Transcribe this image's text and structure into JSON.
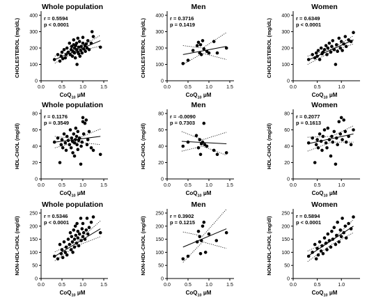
{
  "chart_data": [
    {
      "type": "scatter",
      "title": "Whole population",
      "ylabel": "CHOLESTEROL (mg/dL)",
      "xlabel_main": "CoQ",
      "xlabel_sub": "10",
      "xlabel_unit": " μM",
      "xlim": [
        0,
        1.5
      ],
      "ylim": [
        0,
        400
      ],
      "xticks": [
        "0.0",
        "0.5",
        "1.0",
        "1.5"
      ],
      "yticks": [
        "0",
        "100",
        "200",
        "300",
        "400"
      ],
      "r": "r = 0.5594",
      "p": "p < 0.0001",
      "fit": {
        "x": [
          0.33,
          1.42
        ],
        "y": [
          130,
          245
        ]
      },
      "ci_upper": {
        "x": [
          0.33,
          0.85,
          1.42
        ],
        "y": [
          150,
          193,
          278
        ]
      },
      "ci_lower": {
        "x": [
          0.33,
          0.85,
          1.42
        ],
        "y": [
          108,
          178,
          212
        ]
      },
      "points": {
        "x": [
          0.32,
          0.4,
          0.45,
          0.48,
          0.5,
          0.52,
          0.55,
          0.58,
          0.6,
          0.62,
          0.65,
          0.68,
          0.7,
          0.72,
          0.73,
          0.75,
          0.76,
          0.78,
          0.78,
          0.8,
          0.8,
          0.82,
          0.83,
          0.85,
          0.85,
          0.86,
          0.88,
          0.88,
          0.9,
          0.9,
          0.92,
          0.93,
          0.95,
          0.96,
          0.98,
          1.0,
          1.0,
          1.02,
          1.05,
          1.06,
          1.08,
          1.1,
          1.12,
          1.15,
          1.2,
          1.22,
          1.25,
          1.42
        ],
        "y": [
          130,
          160,
          120,
          150,
          175,
          135,
          190,
          140,
          160,
          200,
          175,
          230,
          160,
          190,
          210,
          150,
          180,
          220,
          250,
          170,
          200,
          140,
          215,
          190,
          230,
          100,
          175,
          260,
          165,
          205,
          240,
          150,
          185,
          210,
          170,
          230,
          265,
          195,
          215,
          180,
          225,
          200,
          245,
          190,
          230,
          300,
          270,
          205
        ]
      }
    },
    {
      "type": "scatter",
      "title": "Men",
      "ylabel": "CHOLESTEROL (mg/dL)",
      "xlabel_main": "CoQ",
      "xlabel_sub": "10",
      "xlabel_unit": " μM",
      "xlim": [
        0,
        1.5
      ],
      "ylim": [
        0,
        400
      ],
      "xticks": [
        "0.0",
        "0.5",
        "1.0",
        "1.5"
      ],
      "yticks": [
        "0",
        "100",
        "200",
        "300",
        "400"
      ],
      "r": "r = 0.3716",
      "p": "p = 0.1419",
      "fit": {
        "x": [
          0.38,
          1.42
        ],
        "y": [
          160,
          210
        ]
      },
      "ci_upper": {
        "x": [
          0.38,
          0.85,
          1.42
        ],
        "y": [
          215,
          200,
          295
        ]
      },
      "ci_lower": {
        "x": [
          0.38,
          0.85,
          1.42
        ],
        "y": [
          100,
          168,
          130
        ]
      },
      "points": {
        "x": [
          0.38,
          0.5,
          0.62,
          0.72,
          0.75,
          0.78,
          0.8,
          0.82,
          0.85,
          0.88,
          0.95,
          1.0,
          1.12,
          1.2,
          1.42
        ],
        "y": [
          105,
          125,
          185,
          215,
          235,
          170,
          220,
          160,
          245,
          195,
          180,
          170,
          240,
          170,
          200
        ]
      }
    },
    {
      "type": "scatter",
      "title": "Women",
      "ylabel": "CHOLESTEROL (mg/dL)",
      "xlabel_main": "CoQ",
      "xlabel_sub": "10",
      "xlabel_unit": " μM",
      "xlim": [
        0,
        1.3
      ],
      "ylim": [
        0,
        400
      ],
      "xticks": [
        "0.0",
        "0.5",
        "1.0"
      ],
      "yticks": [
        "0",
        "100",
        "200",
        "300",
        "400"
      ],
      "r": "r = 0.6349",
      "p": "p < 0.0001",
      "fit": {
        "x": [
          0.3,
          1.25
        ],
        "y": [
          125,
          250
        ]
      },
      "ci_upper": {
        "x": [
          0.3,
          0.8,
          1.25
        ],
        "y": [
          150,
          195,
          275
        ]
      },
      "ci_lower": {
        "x": [
          0.3,
          0.8,
          1.25
        ],
        "y": [
          100,
          178,
          225
        ]
      },
      "points": {
        "x": [
          0.32,
          0.4,
          0.45,
          0.48,
          0.5,
          0.52,
          0.55,
          0.58,
          0.6,
          0.62,
          0.65,
          0.68,
          0.7,
          0.72,
          0.75,
          0.78,
          0.8,
          0.82,
          0.85,
          0.88,
          0.9,
          0.92,
          0.95,
          0.98,
          1.0,
          1.02,
          1.05,
          1.08,
          1.1,
          1.15,
          1.2,
          1.25
        ],
        "y": [
          130,
          160,
          140,
          170,
          150,
          185,
          130,
          200,
          165,
          175,
          190,
          215,
          160,
          200,
          230,
          175,
          210,
          245,
          190,
          100,
          220,
          180,
          260,
          200,
          240,
          185,
          225,
          270,
          210,
          250,
          240,
          295
        ]
      }
    },
    {
      "type": "scatter",
      "title": "Whole population",
      "ylabel": "HDL-CHOL (mg/dl)",
      "xlabel_main": "CoQ",
      "xlabel_sub": "10",
      "xlabel_unit": " μM",
      "xlim": [
        0,
        1.5
      ],
      "ylim": [
        0,
        80
      ],
      "xticks": [
        "0.0",
        "0.5",
        "1.0",
        "1.5"
      ],
      "yticks": [
        "0",
        "20",
        "40",
        "60",
        "80"
      ],
      "r": "r = 0.1176",
      "p": "p = 0.3549",
      "fit": {
        "x": [
          0.33,
          1.42
        ],
        "y": [
          45,
          52
        ]
      },
      "ci_upper": {
        "x": [
          0.33,
          0.85,
          1.42
        ],
        "y": [
          52,
          49,
          61
        ]
      },
      "ci_lower": {
        "x": [
          0.33,
          0.85,
          1.42
        ],
        "y": [
          38,
          45,
          42
        ]
      },
      "points": {
        "x": [
          0.32,
          0.4,
          0.45,
          0.48,
          0.5,
          0.52,
          0.55,
          0.58,
          0.6,
          0.62,
          0.65,
          0.68,
          0.7,
          0.72,
          0.73,
          0.75,
          0.76,
          0.78,
          0.8,
          0.8,
          0.82,
          0.83,
          0.85,
          0.86,
          0.88,
          0.88,
          0.9,
          0.92,
          0.95,
          0.96,
          0.98,
          1.0,
          1.0,
          1.02,
          1.05,
          1.08,
          1.1,
          1.12,
          1.15,
          1.2,
          1.25,
          1.42
        ],
        "y": [
          45,
          50,
          20,
          42,
          48,
          38,
          55,
          44,
          35,
          52,
          47,
          42,
          60,
          38,
          50,
          46,
          32,
          55,
          44,
          28,
          48,
          62,
          52,
          42,
          58,
          36,
          47,
          50,
          18,
          40,
          45,
          70,
          75,
          55,
          68,
          72,
          42,
          48,
          58,
          38,
          35,
          30
        ]
      }
    },
    {
      "type": "scatter",
      "title": "Men",
      "ylabel": "HDL-CHOL (mg/dl)",
      "xlabel_main": "CoQ",
      "xlabel_sub": "10",
      "xlabel_unit": " μM",
      "xlim": [
        0,
        1.5
      ],
      "ylim": [
        0,
        80
      ],
      "xticks": [
        "0.0",
        "0.5",
        "1.0",
        "1.5"
      ],
      "yticks": [
        "0",
        "20",
        "40",
        "60",
        "80"
      ],
      "r": "r = -0.0090",
      "p": "p = 0.7303",
      "fit": {
        "x": [
          0.35,
          1.42
        ],
        "y": [
          46,
          43
        ]
      },
      "ci_upper": {
        "x": [
          0.35,
          0.85,
          1.42
        ],
        "y": [
          58,
          48,
          57
        ]
      },
      "ci_lower": {
        "x": [
          0.35,
          0.85,
          1.42
        ],
        "y": [
          34,
          40,
          29
        ]
      },
      "points": {
        "x": [
          0.38,
          0.5,
          0.7,
          0.75,
          0.78,
          0.8,
          0.82,
          0.85,
          0.88,
          0.9,
          0.95,
          1.12,
          1.2,
          1.42
        ],
        "y": [
          40,
          45,
          53,
          38,
          48,
          30,
          43,
          45,
          68,
          42,
          40,
          35,
          30,
          32
        ]
      }
    },
    {
      "type": "scatter",
      "title": "Women",
      "ylabel": "HDL-CHOL (mg/dl)",
      "xlabel_main": "CoQ",
      "xlabel_sub": "10",
      "xlabel_unit": " μM",
      "xlim": [
        0,
        1.3
      ],
      "ylim": [
        0,
        80
      ],
      "xticks": [
        "0.0",
        "0.5",
        "1.0"
      ],
      "yticks": [
        "0",
        "20",
        "40",
        "60",
        "80"
      ],
      "r": "r = 0.2077",
      "p": "p = 0.1613",
      "fit": {
        "x": [
          0.3,
          1.25
        ],
        "y": [
          43,
          55
        ]
      },
      "ci_upper": {
        "x": [
          0.3,
          0.8,
          1.25
        ],
        "y": [
          51,
          52,
          65
        ]
      },
      "ci_lower": {
        "x": [
          0.3,
          0.8,
          1.25
        ],
        "y": [
          34,
          45,
          45
        ]
      },
      "points": {
        "x": [
          0.32,
          0.4,
          0.45,
          0.48,
          0.5,
          0.52,
          0.55,
          0.58,
          0.6,
          0.62,
          0.65,
          0.68,
          0.7,
          0.72,
          0.75,
          0.78,
          0.8,
          0.82,
          0.85,
          0.88,
          0.9,
          0.92,
          0.95,
          0.98,
          1.0,
          1.02,
          1.05,
          1.08,
          1.1,
          1.15,
          1.2,
          1.25
        ],
        "y": [
          44,
          50,
          20,
          42,
          48,
          38,
          55,
          46,
          35,
          52,
          60,
          44,
          38,
          62,
          48,
          28,
          52,
          45,
          58,
          18,
          50,
          42,
          70,
          55,
          75,
          48,
          72,
          58,
          45,
          52,
          42,
          60
        ]
      }
    },
    {
      "type": "scatter",
      "title": "Whole population",
      "ylabel": "NON-HDL-CHOL (mg/dl)",
      "xlabel_main": "CoQ",
      "xlabel_sub": "10",
      "xlabel_unit": " μM",
      "xlim": [
        0,
        1.5
      ],
      "ylim": [
        0,
        250
      ],
      "xticks": [
        "0.0",
        "0.5",
        "1.0",
        "1.5"
      ],
      "yticks": [
        "0",
        "50",
        "100",
        "150",
        "200",
        "250"
      ],
      "r": "r = 0.5346",
      "p": "p < 0.0001",
      "fit": {
        "x": [
          0.33,
          1.42
        ],
        "y": [
          85,
          190
        ]
      },
      "ci_upper": {
        "x": [
          0.33,
          0.85,
          1.42
        ],
        "y": [
          102,
          140,
          220
        ]
      },
      "ci_lower": {
        "x": [
          0.33,
          0.85,
          1.42
        ],
        "y": [
          68,
          125,
          160
        ]
      },
      "points": {
        "x": [
          0.32,
          0.4,
          0.45,
          0.48,
          0.5,
          0.52,
          0.55,
          0.58,
          0.6,
          0.62,
          0.65,
          0.68,
          0.7,
          0.72,
          0.73,
          0.75,
          0.76,
          0.78,
          0.8,
          0.8,
          0.82,
          0.83,
          0.85,
          0.86,
          0.88,
          0.88,
          0.9,
          0.92,
          0.95,
          0.96,
          0.98,
          1.0,
          1.0,
          1.02,
          1.05,
          1.08,
          1.1,
          1.12,
          1.15,
          1.2,
          1.25,
          1.42
        ],
        "y": [
          85,
          75,
          130,
          95,
          110,
          80,
          140,
          100,
          120,
          90,
          150,
          130,
          175,
          110,
          160,
          140,
          100,
          185,
          150,
          120,
          200,
          165,
          135,
          210,
          155,
          180,
          125,
          170,
          230,
          145,
          190,
          160,
          210,
          175,
          150,
          185,
          230,
          170,
          195,
          215,
          235,
          175
        ]
      }
    },
    {
      "type": "scatter",
      "title": "Men",
      "ylabel": "NON-HDL-CHOL (mg/dl)",
      "xlabel_main": "CoQ",
      "xlabel_sub": "10",
      "xlabel_unit": " μM",
      "xlim": [
        0,
        1.5
      ],
      "ylim": [
        0,
        250
      ],
      "xticks": [
        "0.0",
        "0.5",
        "1.0",
        "1.5"
      ],
      "yticks": [
        "0",
        "50",
        "100",
        "150",
        "200",
        "250"
      ],
      "r": "r = 0.3902",
      "p": "p = 0.1215",
      "fit": {
        "x": [
          0.38,
          1.42
        ],
        "y": [
          120,
          190
        ]
      },
      "ci_upper": {
        "x": [
          0.38,
          0.85,
          1.42
        ],
        "y": [
          178,
          162,
          265
        ]
      },
      "ci_lower": {
        "x": [
          0.38,
          0.85,
          1.42
        ],
        "y": [
          62,
          140,
          115
        ]
      },
      "points": {
        "x": [
          0.38,
          0.5,
          0.72,
          0.75,
          0.78,
          0.8,
          0.82,
          0.85,
          0.88,
          0.92,
          1.0,
          1.18,
          1.42
        ],
        "y": [
          75,
          85,
          140,
          180,
          160,
          95,
          145,
          200,
          215,
          100,
          170,
          145,
          175
        ]
      }
    },
    {
      "type": "scatter",
      "title": "Women",
      "ylabel": "NON-HDL-CHOL (mg/dl)",
      "xlabel_main": "CoQ",
      "xlabel_sub": "10",
      "xlabel_unit": " μM",
      "xlim": [
        0,
        1.3
      ],
      "ylim": [
        0,
        250
      ],
      "xticks": [
        "0.0",
        "0.5",
        "1.0"
      ],
      "yticks": [
        "0",
        "50",
        "100",
        "150",
        "200",
        "250"
      ],
      "r": "r = 0.5894",
      "p": "p < 0.0001",
      "fit": {
        "x": [
          0.3,
          1.25
        ],
        "y": [
          85,
          200
        ]
      },
      "ci_upper": {
        "x": [
          0.3,
          0.8,
          1.25
        ],
        "y": [
          105,
          145,
          225
        ]
      },
      "ci_lower": {
        "x": [
          0.3,
          0.8,
          1.25
        ],
        "y": [
          65,
          130,
          175
        ]
      },
      "points": {
        "x": [
          0.32,
          0.4,
          0.45,
          0.48,
          0.5,
          0.52,
          0.55,
          0.58,
          0.6,
          0.62,
          0.65,
          0.68,
          0.7,
          0.72,
          0.75,
          0.78,
          0.8,
          0.82,
          0.85,
          0.88,
          0.9,
          0.92,
          0.95,
          0.98,
          1.0,
          1.02,
          1.05,
          1.08,
          1.1,
          1.15,
          1.2,
          1.25
        ],
        "y": [
          85,
          100,
          130,
          75,
          115,
          90,
          140,
          105,
          125,
          95,
          155,
          135,
          110,
          170,
          145,
          120,
          180,
          150,
          195,
          130,
          165,
          215,
          140,
          185,
          160,
          230,
          175,
          200,
          155,
          210,
          190,
          235
        ]
      }
    }
  ]
}
